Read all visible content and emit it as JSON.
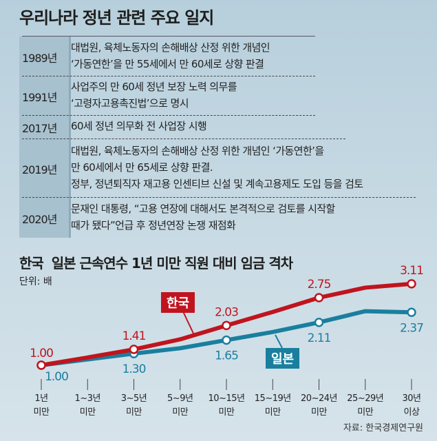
{
  "title": "우리나라 정년 관련 주요 일지",
  "timeline": [
    {
      "year": "1989년",
      "lines": [
        "대법원, 육체노동자의 손해배상 산정 위한 개념인",
        "‘가동연한’을 만 55세에서 만 60세로 상향 판결"
      ]
    },
    {
      "year": "1991년",
      "lines": [
        "사업주의 만 60세 정년 보장 노력 의무를",
        "‘고령자고용촉진법’으로 명시"
      ]
    },
    {
      "year": "2017년",
      "lines": [
        "60세 정년 의무화 전 사업장 시행"
      ]
    },
    {
      "year": "2019년",
      "lines": [
        "대법원, 육체노동자의 손해배상 산정 위한 개념인 ‘가동연한’을",
        "만 60세에서 만 65세로 상향 판결.",
        "정부, 정년퇴직자 재고용 인센티브 신설 및 계속고용제도 도입 등을 검토"
      ]
    },
    {
      "year": "2020년",
      "lines": [
        "문재인 대통령, “고용 연장에 대해서도 본격적으로 검토를 시작할",
        "때가 됐다”언급 후 정년연장 논쟁 재점화"
      ]
    }
  ],
  "chart_data": {
    "type": "line",
    "title": "한국  일본 근속연수 1년 미만 직원 대비 임금 격차",
    "unit": "단위: 배",
    "source": "자료: 한국경제연구원",
    "categories": [
      [
        "1년",
        "미만"
      ],
      [
        "1~3년",
        "미만"
      ],
      [
        "3~5년",
        "미만"
      ],
      [
        "5~9년",
        "미만"
      ],
      [
        "10~15년",
        "미만"
      ],
      [
        "15~19년",
        "미만"
      ],
      [
        "20~24년",
        "미만"
      ],
      [
        "25~29년",
        "미만"
      ],
      [
        "30년",
        "이상"
      ]
    ],
    "series": [
      {
        "name": "한국",
        "color": "#c0141e",
        "values": [
          1.0,
          1.2,
          1.41,
          1.67,
          2.03,
          2.38,
          2.75,
          3.01,
          3.11
        ],
        "labels": [
          "1.00",
          null,
          "1.41",
          null,
          "2.03",
          null,
          "2.75",
          null,
          "3.11"
        ]
      },
      {
        "name": "일본",
        "color": "#1a7f9e",
        "values": [
          1.0,
          1.15,
          1.3,
          1.44,
          1.65,
          1.86,
          2.11,
          2.4,
          2.37
        ],
        "labels": [
          "1.00",
          null,
          "1.30",
          null,
          "1.65",
          null,
          "2.11",
          null,
          "2.37"
        ]
      }
    ],
    "ylim": [
      1.0,
      3.11
    ],
    "grid": false,
    "legend": "inline-labels"
  }
}
